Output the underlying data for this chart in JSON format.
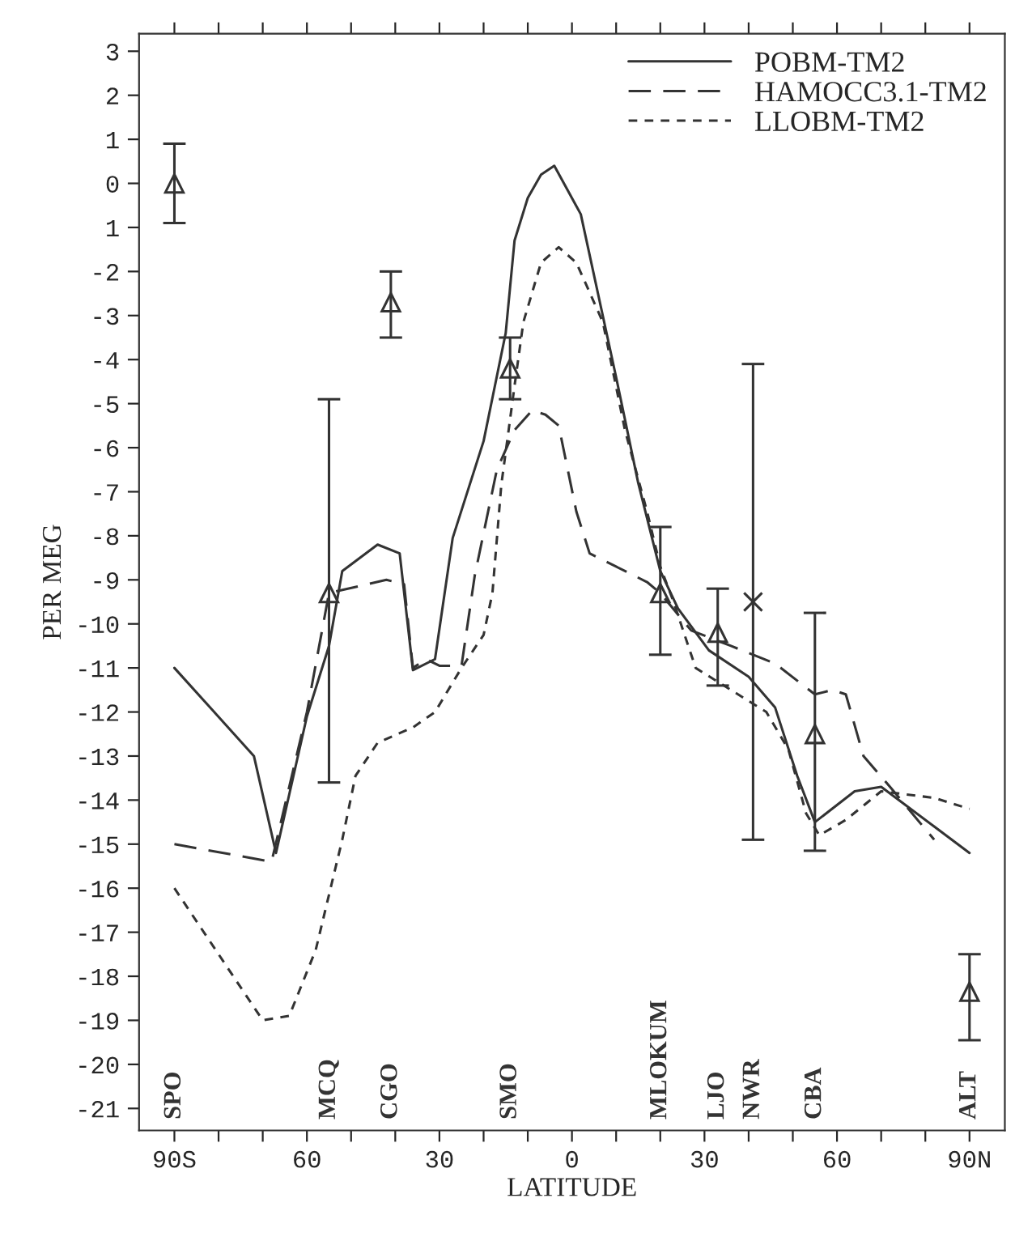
{
  "chart_data": {
    "type": "line",
    "xlabel": "LATITUDE",
    "ylabel": "PER MEG",
    "xlim": [
      -98,
      98
    ],
    "ylim": [
      -21.5,
      3.4
    ],
    "xticks": [
      {
        "value": -90,
        "label": "90S"
      },
      {
        "value": -80,
        "label": null
      },
      {
        "value": -70,
        "label": null
      },
      {
        "value": -60,
        "label": "60"
      },
      {
        "value": -50,
        "label": null
      },
      {
        "value": -40,
        "label": null
      },
      {
        "value": -30,
        "label": "30"
      },
      {
        "value": -20,
        "label": null
      },
      {
        "value": -10,
        "label": null
      },
      {
        "value": 0,
        "label": "0"
      },
      {
        "value": 10,
        "label": null
      },
      {
        "value": 20,
        "label": null
      },
      {
        "value": 30,
        "label": "30"
      },
      {
        "value": 40,
        "label": null
      },
      {
        "value": 50,
        "label": null
      },
      {
        "value": 60,
        "label": "60"
      },
      {
        "value": 70,
        "label": null
      },
      {
        "value": 80,
        "label": null
      },
      {
        "value": 90,
        "label": "90N"
      }
    ],
    "yticks": [
      -21,
      -20,
      -19,
      -18,
      -17,
      -16,
      -15,
      -14,
      -13,
      -12,
      -11,
      -10,
      -9,
      -8,
      -7,
      -6,
      -5,
      -4,
      -3,
      -2,
      {
        "value": -1,
        "label": "1"
      },
      0,
      1,
      2,
      3
    ],
    "grid": false,
    "legend": "top right",
    "series": [
      {
        "name": "POBM-TM2",
        "color": "#333333",
        "line_style": "solid",
        "marker": "none",
        "x": [
          -90,
          -72,
          -67,
          -60,
          -55,
          -52,
          -44,
          -39,
          -36,
          -31,
          -27,
          -20,
          -15,
          -13,
          -10,
          -7,
          -4,
          2,
          10,
          15,
          20,
          24,
          31,
          40,
          46,
          51,
          55,
          64,
          70,
          82,
          90
        ],
        "values": [
          -11.0,
          -13.0,
          -15.2,
          -12.1,
          -10.5,
          -8.8,
          -8.2,
          -8.4,
          -11.05,
          -10.8,
          -8.05,
          -5.85,
          -3.4,
          -1.3,
          -0.33,
          0.2,
          0.4,
          -0.7,
          -4.4,
          -6.8,
          -8.8,
          -9.65,
          -10.6,
          -11.2,
          -11.9,
          -13.45,
          -14.5,
          -13.8,
          -13.7,
          -14.6,
          -15.2
        ]
      },
      {
        "name": "HAMOCC3.1-TM2",
        "color": "#333333",
        "line_style": "dashed",
        "marker": "none",
        "x": [
          -90,
          -68,
          -60,
          -55,
          -42,
          -38,
          -36,
          -33,
          -30,
          -25,
          -22,
          -17,
          -13,
          -9,
          -6,
          -3,
          1,
          4,
          10,
          17,
          20,
          27,
          36,
          46,
          55,
          59,
          62,
          66,
          72,
          82
        ],
        "values": [
          -15.0,
          -15.4,
          -12.0,
          -9.3,
          -9.0,
          -9.1,
          -11.0,
          -10.8,
          -10.95,
          -10.95,
          -8.9,
          -6.5,
          -5.6,
          -5.15,
          -5.25,
          -5.5,
          -7.45,
          -8.4,
          -8.7,
          -9.05,
          -9.3,
          -10.15,
          -10.5,
          -10.9,
          -11.6,
          -11.5,
          -11.6,
          -13.0,
          -13.7,
          -14.9
        ]
      },
      {
        "name": "LLOBM-TM2",
        "color": "#333333",
        "line_style": "dotted",
        "marker": "none",
        "x": [
          -90,
          -70,
          -64,
          -58,
          -52,
          -49,
          -44,
          -36,
          -31,
          -25,
          -20,
          -18,
          -16,
          -13,
          -11,
          -7,
          -3,
          1,
          7,
          12,
          17,
          20,
          23,
          28,
          36,
          44,
          49,
          53,
          56,
          62,
          70,
          82,
          90
        ],
        "values": [
          -16.0,
          -19.0,
          -18.9,
          -17.4,
          -14.9,
          -13.45,
          -12.7,
          -12.35,
          -12.0,
          -11.0,
          -10.25,
          -9.3,
          -6.85,
          -4.6,
          -3.15,
          -1.8,
          -1.45,
          -1.8,
          -3.15,
          -5.6,
          -7.45,
          -8.7,
          -9.5,
          -11.0,
          -11.5,
          -12.0,
          -12.85,
          -14.3,
          -14.8,
          -14.45,
          -13.8,
          -13.95,
          -14.2
        ]
      },
      {
        "type": "scatter",
        "color": "#333333",
        "marker": "triangle",
        "x": [
          -90,
          -55,
          -41,
          -14,
          20,
          33,
          55,
          90
        ],
        "values": [
          0.0,
          -9.3,
          -2.7,
          -4.2,
          -9.3,
          -10.2,
          -12.5,
          -18.35
        ],
        "errors": [
          0.9,
          [
            -13.6,
            -4.9
          ],
          [
            -3.5,
            -2.0
          ],
          [
            -4.9,
            -3.5
          ],
          [
            -10.7,
            -7.8
          ],
          [
            -11.4,
            -9.2
          ],
          [
            -15.15,
            -9.75
          ],
          [
            -19.45,
            -17.5
          ]
        ]
      },
      {
        "type": "scatter",
        "color": "#333333",
        "marker": "cross",
        "x": [
          41
        ],
        "values": [
          -9.5
        ],
        "errors": [
          [
            -14.9,
            -4.1
          ]
        ]
      }
    ],
    "annotations": [
      "SPO",
      "MCQ",
      "CGO",
      "SMO",
      "MLOKUM",
      "LJO",
      "NWR",
      "CBA",
      "ALT"
    ]
  }
}
